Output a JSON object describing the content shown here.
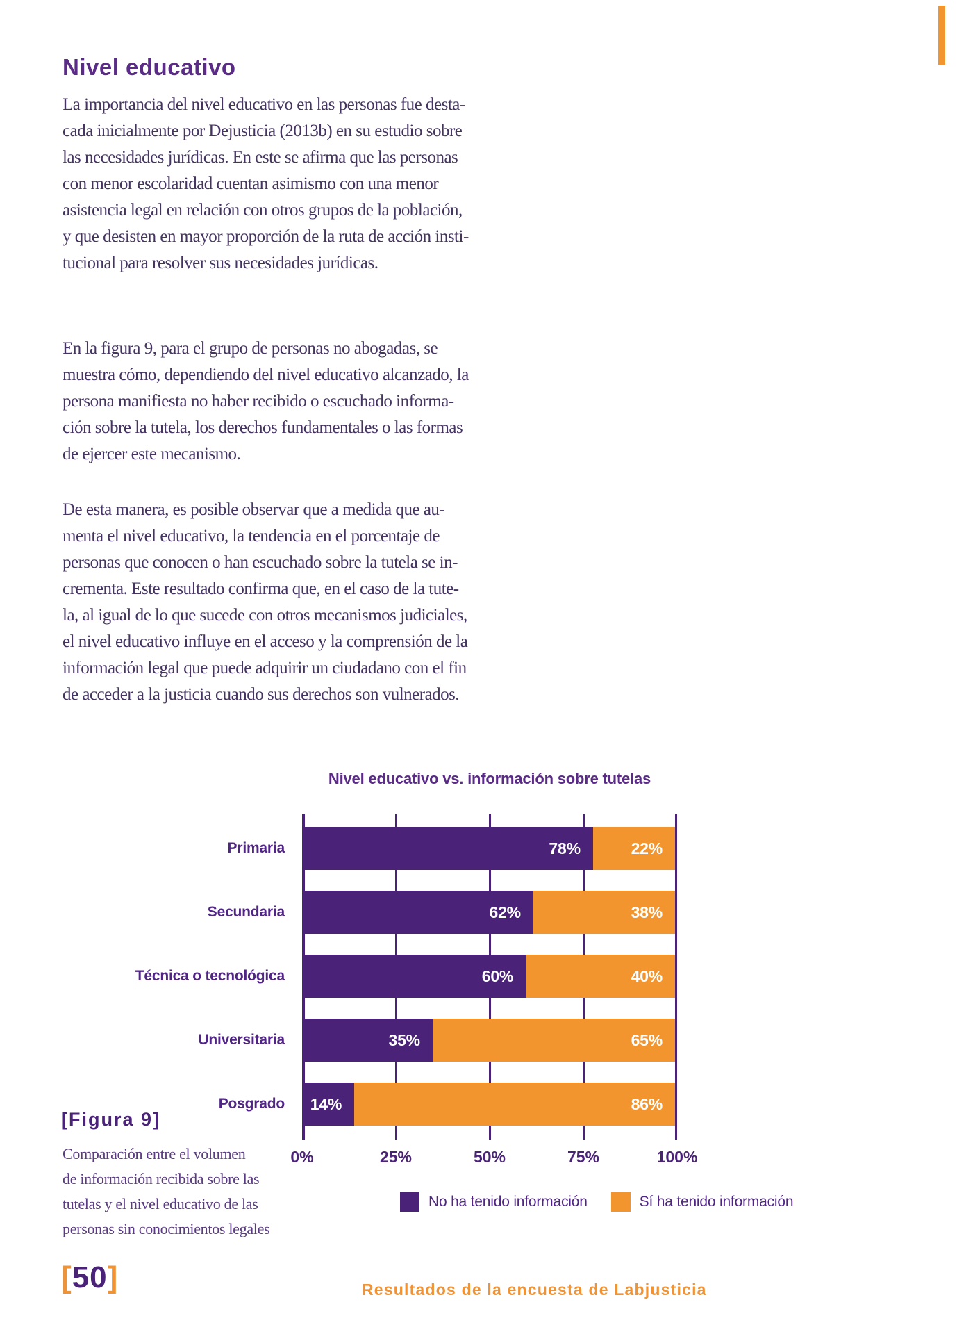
{
  "colors": {
    "accent_purple": "#4A2379",
    "title_purple": "#5B2C87",
    "body_text_purple": "#453462",
    "accent_orange": "#F2952F",
    "footer_orange": "#EF9335"
  },
  "page": {
    "section_title": "Nivel educativo",
    "paragraphs": [
      {
        "lines": [
          "La importancia del nivel educativo en las personas fue desta-",
          "cada inicialmente por Dejusticia (2013b) en su estudio sobre",
          "las necesidades jurídicas. En este se afirma que las personas",
          "con menor escolaridad cuentan asimismo con una menor",
          "asistencia legal en relación con otros grupos de la población,",
          "y que desisten en mayor proporción de la ruta de acción insti-",
          "tucional para resolver sus necesidades jurídicas."
        ]
      },
      {
        "lines": [
          "En la figura 9, para el grupo de personas no abogadas, se",
          "muestra cómo, dependiendo del nivel educativo alcanzado, la",
          "persona manifiesta no haber recibido o escuchado informa-",
          "ción sobre la tutela, los derechos fundamentales o las formas",
          "de ejercer este mecanismo."
        ]
      },
      {
        "lines": [
          "De esta manera, es posible observar que a medida que au-",
          "menta el nivel educativo, la tendencia en el porcentaje de",
          "personas que conocen o han escuchado sobre la tutela se in-",
          "crementa. Este resultado confirma que, en el caso de la tute-",
          "la, al igual de lo que sucede con otros mecanismos judiciales,",
          "el nivel educativo influye en el acceso y la comprensión de la",
          "información legal que puede adquirir un ciudadano con el fin",
          "de acceder a la justicia cuando sus derechos son vulnerados."
        ]
      }
    ],
    "figure": {
      "label": "[Figura 9]",
      "caption_lines": [
        "Comparación entre el volumen",
        "de información recibida sobre las",
        "tutelas y el nivel educativo de las",
        "personas sin conocimientos legales"
      ]
    },
    "page_number": {
      "open": "[",
      "number": "50",
      "close": "]"
    },
    "footer": "Resultados de la encuesta de Labjusticia"
  },
  "chart_data": {
    "type": "bar",
    "orientation": "horizontal",
    "stacked": true,
    "title": "Nivel educativo vs. información sobre tutelas",
    "categories": [
      "Primaria",
      "Secundaria",
      "Técnica o tecnológica",
      "Universitaria",
      "Posgrado"
    ],
    "series": [
      {
        "name": "No ha tenido información",
        "color": "#4A2379",
        "values": [
          78,
          62,
          60,
          35,
          14
        ]
      },
      {
        "name": "Sí ha tenido información",
        "color": "#F2952F",
        "values": [
          22,
          38,
          40,
          65,
          86
        ]
      }
    ],
    "value_suffix": "%",
    "xticks": [
      "0%",
      "25%",
      "50%",
      "75%",
      "100%"
    ],
    "xtick_values": [
      0,
      25,
      50,
      75,
      100
    ],
    "xlim": [
      0,
      100
    ],
    "grid": true,
    "legend_position": "bottom"
  }
}
